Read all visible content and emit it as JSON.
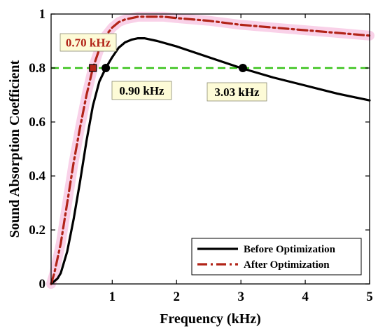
{
  "chart_data": {
    "type": "line",
    "xlabel": "Frequency (kHz)",
    "ylabel": "Sound Absorption Coefficient",
    "xlim": [
      0.05,
      5
    ],
    "ylim": [
      0,
      1
    ],
    "xticks": [
      "1",
      "2",
      "3",
      "4",
      "5"
    ],
    "yticks": [
      "0",
      "0.2",
      "0.4",
      "0.6",
      "0.8",
      "1"
    ],
    "grid": false,
    "legend_position": "bottom-right",
    "series": [
      {
        "name": "Before Optimization",
        "color": "#000000",
        "style": "solid",
        "x": [
          0.05,
          0.1,
          0.15,
          0.2,
          0.3,
          0.4,
          0.5,
          0.6,
          0.7,
          0.8,
          0.9,
          1.0,
          1.1,
          1.2,
          1.3,
          1.4,
          1.5,
          1.7,
          2.0,
          2.5,
          3.0,
          3.5,
          4.0,
          4.5,
          5.0
        ],
        "y": [
          0.0,
          0.01,
          0.02,
          0.04,
          0.12,
          0.24,
          0.38,
          0.53,
          0.66,
          0.75,
          0.8,
          0.84,
          0.875,
          0.895,
          0.905,
          0.91,
          0.91,
          0.9,
          0.88,
          0.84,
          0.8,
          0.765,
          0.735,
          0.705,
          0.68
        ]
      },
      {
        "name": "After Optimization",
        "color": "#b22418",
        "style": "dash-dot",
        "x": [
          0.05,
          0.1,
          0.2,
          0.3,
          0.4,
          0.5,
          0.6,
          0.7,
          0.8,
          0.9,
          1.0,
          1.1,
          1.2,
          1.4,
          1.6,
          1.8,
          2.0,
          2.5,
          3.0,
          3.5,
          4.0,
          4.5,
          5.0
        ],
        "y": [
          0.0,
          0.04,
          0.15,
          0.3,
          0.45,
          0.58,
          0.7,
          0.8,
          0.87,
          0.92,
          0.95,
          0.97,
          0.98,
          0.99,
          0.99,
          0.99,
          0.985,
          0.975,
          0.96,
          0.95,
          0.94,
          0.93,
          0.92
        ]
      }
    ],
    "reference_line": {
      "y": 0.8,
      "color": "#39c21a",
      "style": "dashed"
    },
    "markers": [
      {
        "x": 0.7,
        "y": 0.8,
        "shape": "square",
        "color": "#b22418"
      },
      {
        "x": 0.9,
        "y": 0.8,
        "shape": "circle",
        "color": "#000000"
      },
      {
        "x": 3.03,
        "y": 0.8,
        "shape": "circle",
        "color": "#000000"
      }
    ],
    "annotations": [
      {
        "text": "0.70 kHz",
        "color": "#b22418"
      },
      {
        "text": "0.90 kHz",
        "color": "#000000"
      },
      {
        "text": "3.03 kHz",
        "color": "#000000"
      }
    ],
    "colors": {
      "annotation_box_bg": "#fdfbd7",
      "shading": "#f7c6e2"
    }
  }
}
